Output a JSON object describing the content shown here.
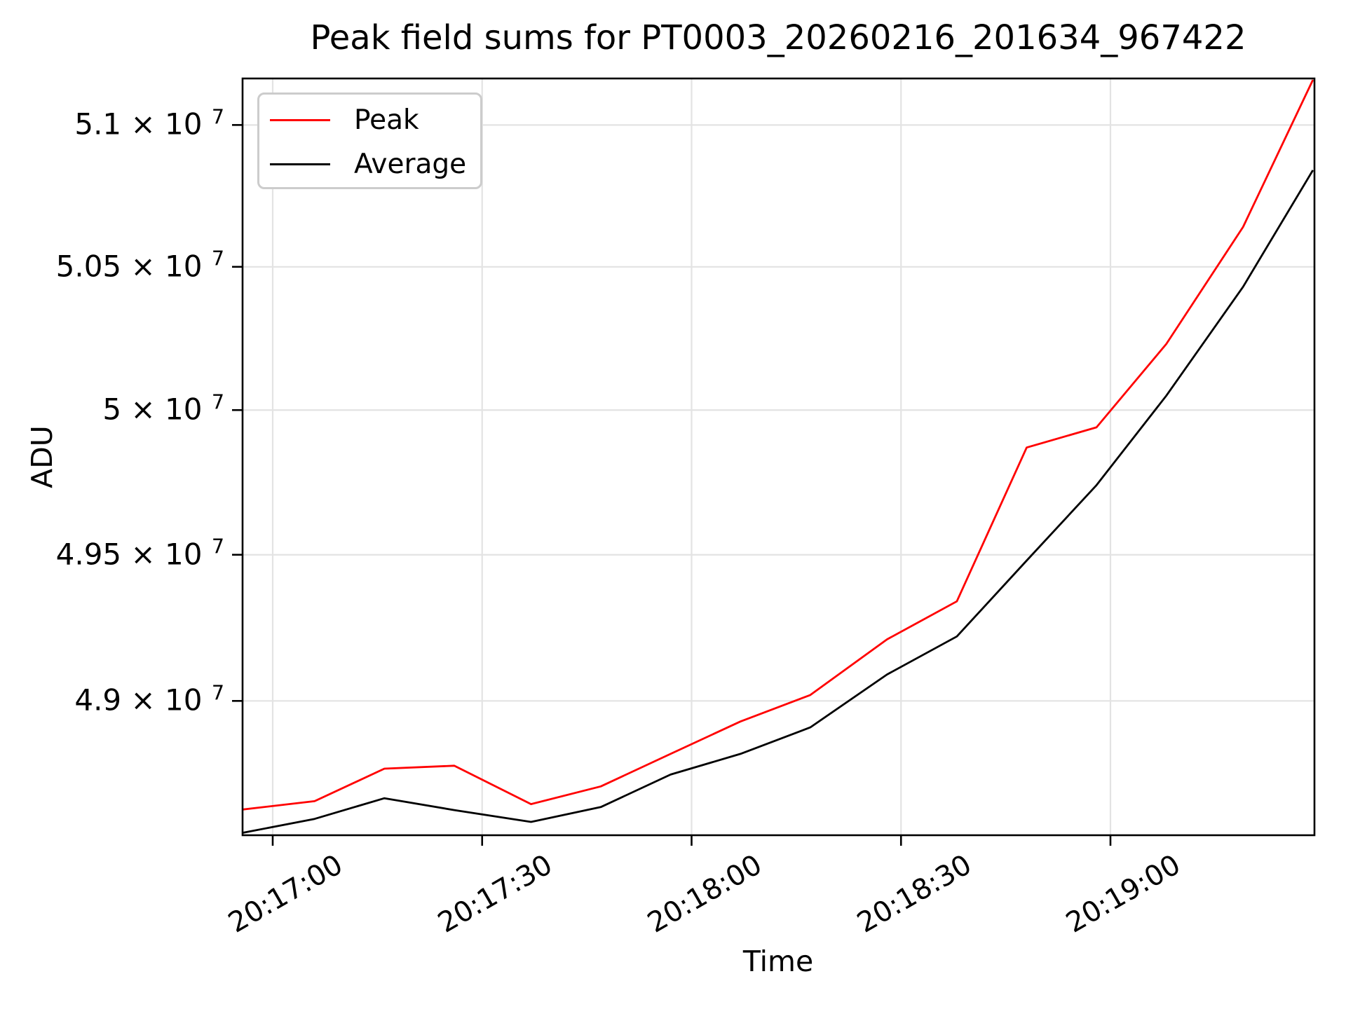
{
  "chart_data": {
    "type": "line",
    "title": "Peak field sums for PT0003_20260216_201634_967422",
    "xlabel": "Time",
    "ylabel": "ADU",
    "yscale": "log",
    "grid": true,
    "legend_position": "upper left",
    "background_color": "#ffffff",
    "grid_color": "#e3e3e3",
    "spine_color": "#000000",
    "legend_border_color": "#cccccc",
    "x": [
      "20:16:55",
      "20:17:06",
      "20:17:16",
      "20:17:26",
      "20:17:37",
      "20:17:47",
      "20:17:57",
      "20:18:07",
      "20:18:17",
      "20:18:28",
      "20:18:38",
      "20:18:48",
      "20:18:58",
      "20:19:08",
      "20:19:19",
      "20:19:29"
    ],
    "series": [
      {
        "name": "Peak",
        "color": "#ff0000",
        "values": [
          48630000,
          48660000,
          48770000,
          48780000,
          48650000,
          48710000,
          48820000,
          48930000,
          49020000,
          49210000,
          49340000,
          49870000,
          49940000,
          50230000,
          50640000,
          51160000
        ]
      },
      {
        "name": "Average",
        "color": "#000000",
        "values": [
          48550000,
          48600000,
          48670000,
          48630000,
          48590000,
          48640000,
          48750000,
          48820000,
          48910000,
          49090000,
          49220000,
          49480000,
          49740000,
          50050000,
          50430000,
          50840000
        ]
      }
    ],
    "x_ticks": [
      "20:17:00",
      "20:17:30",
      "20:18:00",
      "20:18:30",
      "20:19:00"
    ],
    "y_ticks": [
      {
        "mantissa": "5.1 × 10",
        "sup": "7",
        "value": 51000000
      },
      {
        "mantissa": "5.05 × 10",
        "sup": "7",
        "value": 50500000
      },
      {
        "mantissa": "5 × 10",
        "sup": "7",
        "value": 50000000
      },
      {
        "mantissa": "4.95 × 10",
        "sup": "7",
        "value": 49500000
      },
      {
        "mantissa": "4.9 × 10",
        "sup": "7",
        "value": 49000000
      }
    ],
    "ylim": [
      48545000,
      51165000
    ]
  }
}
